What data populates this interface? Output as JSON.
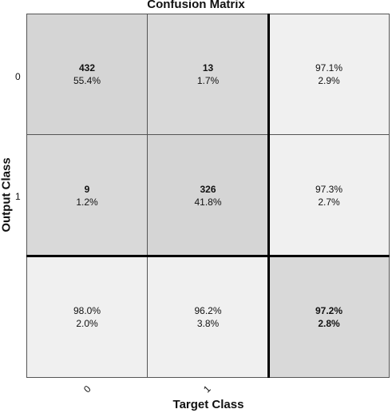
{
  "chart_data": {
    "type": "heatmap",
    "title": "Confusion Matrix",
    "xlabel": "Target Class",
    "ylabel": "Output Class",
    "x_tick_labels": [
      "0",
      "1"
    ],
    "y_tick_labels": [
      "0",
      "1"
    ],
    "matrix": [
      [
        {
          "count": "432",
          "pct": "55.4%"
        },
        {
          "count": "13",
          "pct": "1.7%"
        }
      ],
      [
        {
          "count": "9",
          "pct": "1.2%"
        },
        {
          "count": "326",
          "pct": "41.8%"
        }
      ]
    ],
    "row_summary": [
      {
        "correct": "97.1%",
        "wrong": "2.9%"
      },
      {
        "correct": "97.3%",
        "wrong": "2.7%"
      }
    ],
    "col_summary": [
      {
        "correct": "98.0%",
        "wrong": "2.0%"
      },
      {
        "correct": "96.2%",
        "wrong": "3.8%"
      }
    ],
    "overall": {
      "correct": "97.2%",
      "wrong": "2.8%"
    },
    "colors": {
      "diagonal": "#d5d5d5",
      "off_diagonal": "#d9d9d9",
      "summary": "#f0f0f0",
      "overall": "#d9d9d9"
    }
  }
}
